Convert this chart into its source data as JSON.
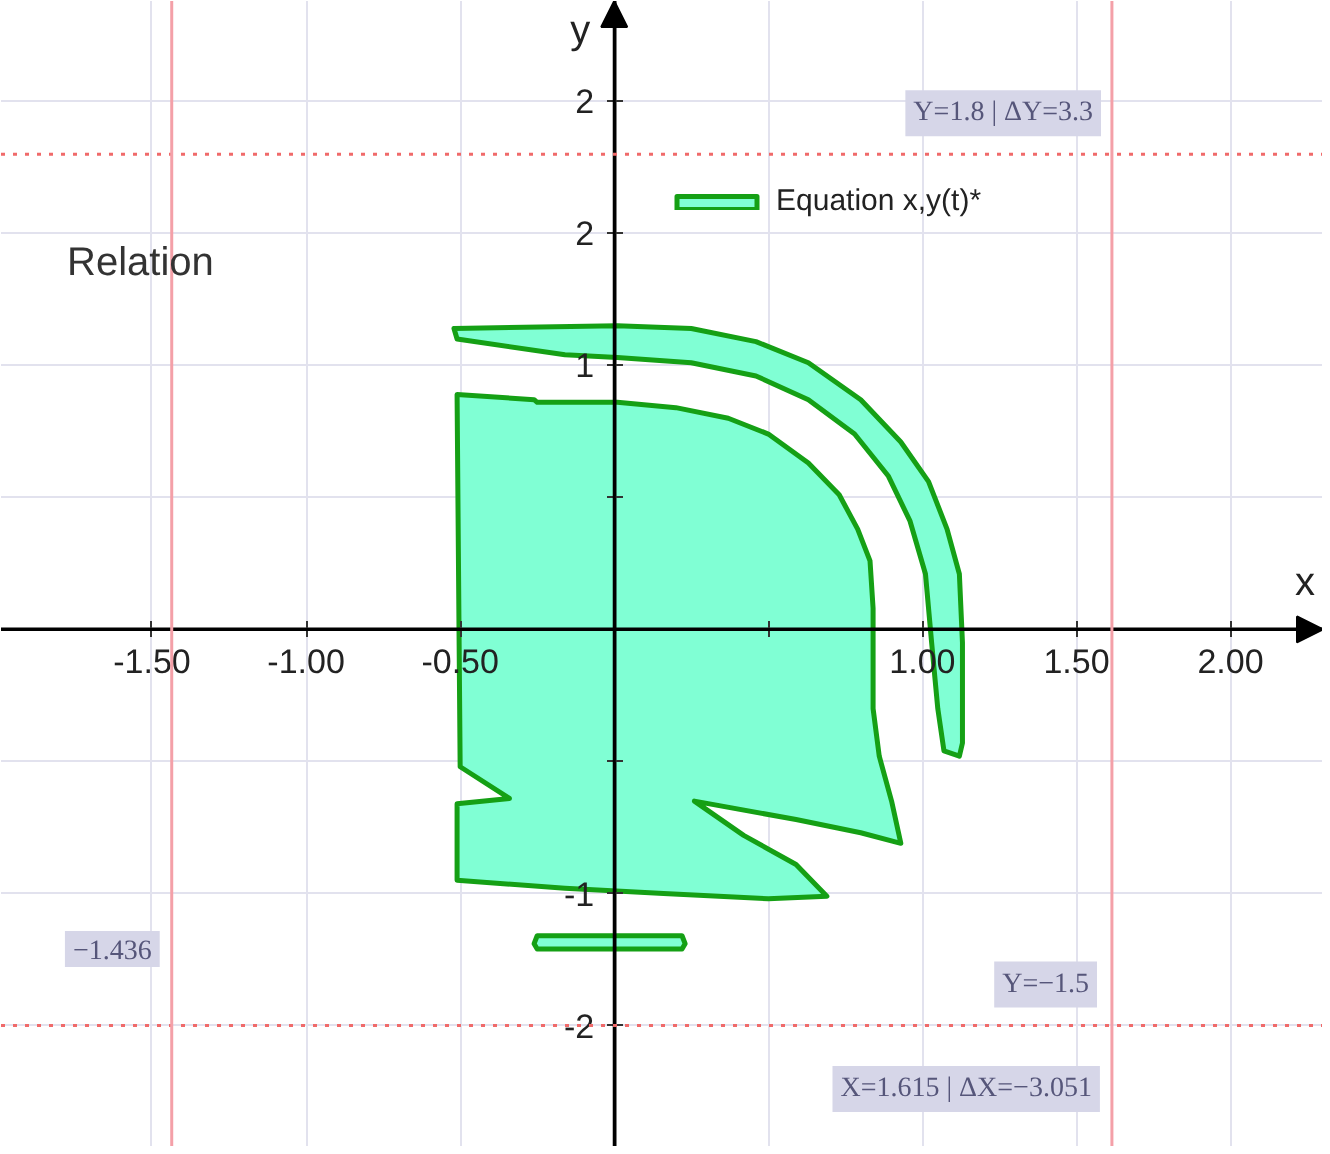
{
  "chart_data": {
    "type": "area",
    "title": "Relation",
    "xlabel": "x",
    "ylabel": "y",
    "series": [
      {
        "name": "Equation x,y(t)*",
        "color": "#80ffd4",
        "x": [
          -0.51,
          -0.26,
          -0.25,
          0.01,
          0.2,
          0.37,
          0.5,
          0.63,
          0.73,
          0.79,
          0.83,
          0.84,
          0.84,
          0.84,
          0.86,
          0.9,
          0.93,
          0.8,
          0.59,
          0.26,
          0.42,
          0.59,
          0.69,
          0.5,
          0.16,
          -0.16,
          -0.51,
          -0.51,
          -0.34,
          -0.5,
          null,
          -0.52,
          0.01,
          0.25,
          0.46,
          0.63,
          0.8,
          0.93,
          1.02,
          1.08,
          1.12,
          1.13,
          1.13,
          1.12,
          1.07,
          1.05,
          1.03,
          1.01,
          0.96,
          0.89,
          0.78,
          0.63,
          0.46,
          0.25,
          0.01,
          -0.16,
          -0.51,
          null,
          -0.25,
          0.22,
          0.23,
          0.22,
          -0.25,
          -0.26
        ],
        "values": [
          0.89,
          0.87,
          0.86,
          0.86,
          0.84,
          0.8,
          0.74,
          0.63,
          0.51,
          0.38,
          0.26,
          0.08,
          -0.07,
          -0.3,
          -0.48,
          -0.65,
          -0.81,
          -0.77,
          -0.72,
          -0.65,
          -0.78,
          -0.89,
          -1.01,
          -1.02,
          -1.0,
          -0.98,
          -0.95,
          -0.66,
          -0.64,
          -0.52,
          null,
          1.14,
          1.15,
          1.14,
          1.09,
          1.01,
          0.87,
          0.71,
          0.56,
          0.38,
          0.21,
          -0.05,
          -0.43,
          -0.48,
          -0.46,
          -0.3,
          -0.05,
          0.21,
          0.41,
          0.58,
          0.74,
          0.87,
          0.96,
          1.01,
          1.03,
          1.04,
          1.1,
          null,
          -1.16,
          -1.16,
          -1.19,
          -1.21,
          -1.21,
          -1.19
        ]
      }
    ],
    "xlim": [
      -1.99,
      2.3
    ],
    "ylim": [
      -1.96,
      2.38
    ],
    "xticks": [
      {
        "value": -1.5,
        "label": "-1.50"
      },
      {
        "value": -1,
        "label": "-1.00"
      },
      {
        "value": -0.5,
        "label": "-0.50"
      },
      {
        "value": 0.5,
        "label": null
      },
      {
        "value": 1,
        "label": "1.00"
      },
      {
        "value": 1.5,
        "label": "1.50"
      },
      {
        "value": 2,
        "label": "2.00"
      }
    ],
    "yticks": [
      2,
      {
        "value": 1.5,
        "label": "2"
      },
      1,
      {
        "value": 0.5,
        "label": null
      },
      {
        "value": -0.5,
        "label": null
      },
      -1,
      {
        "value": -1.5,
        "label": "-2"
      }
    ],
    "ref_lines": [
      {
        "axis": "y",
        "value": 1.8,
        "label": "Y=1.8 | ΔY=3.3",
        "color": "#f06a6a",
        "line_style": "dotted"
      },
      {
        "axis": "y",
        "value": -1.5,
        "label": "Y=−1.5",
        "color": "#f06a6a",
        "line_style": "dotted"
      },
      {
        "axis": "x",
        "value": 1.615,
        "label": "X=1.615 | ΔX=−3.051",
        "color": "#f4a0a8",
        "line_style": "solid"
      },
      {
        "axis": "x",
        "value": -1.436,
        "label": "−1.436",
        "color": "#f4a0a8",
        "line_style": "solid"
      }
    ],
    "grid": true,
    "legend": "top right"
  }
}
